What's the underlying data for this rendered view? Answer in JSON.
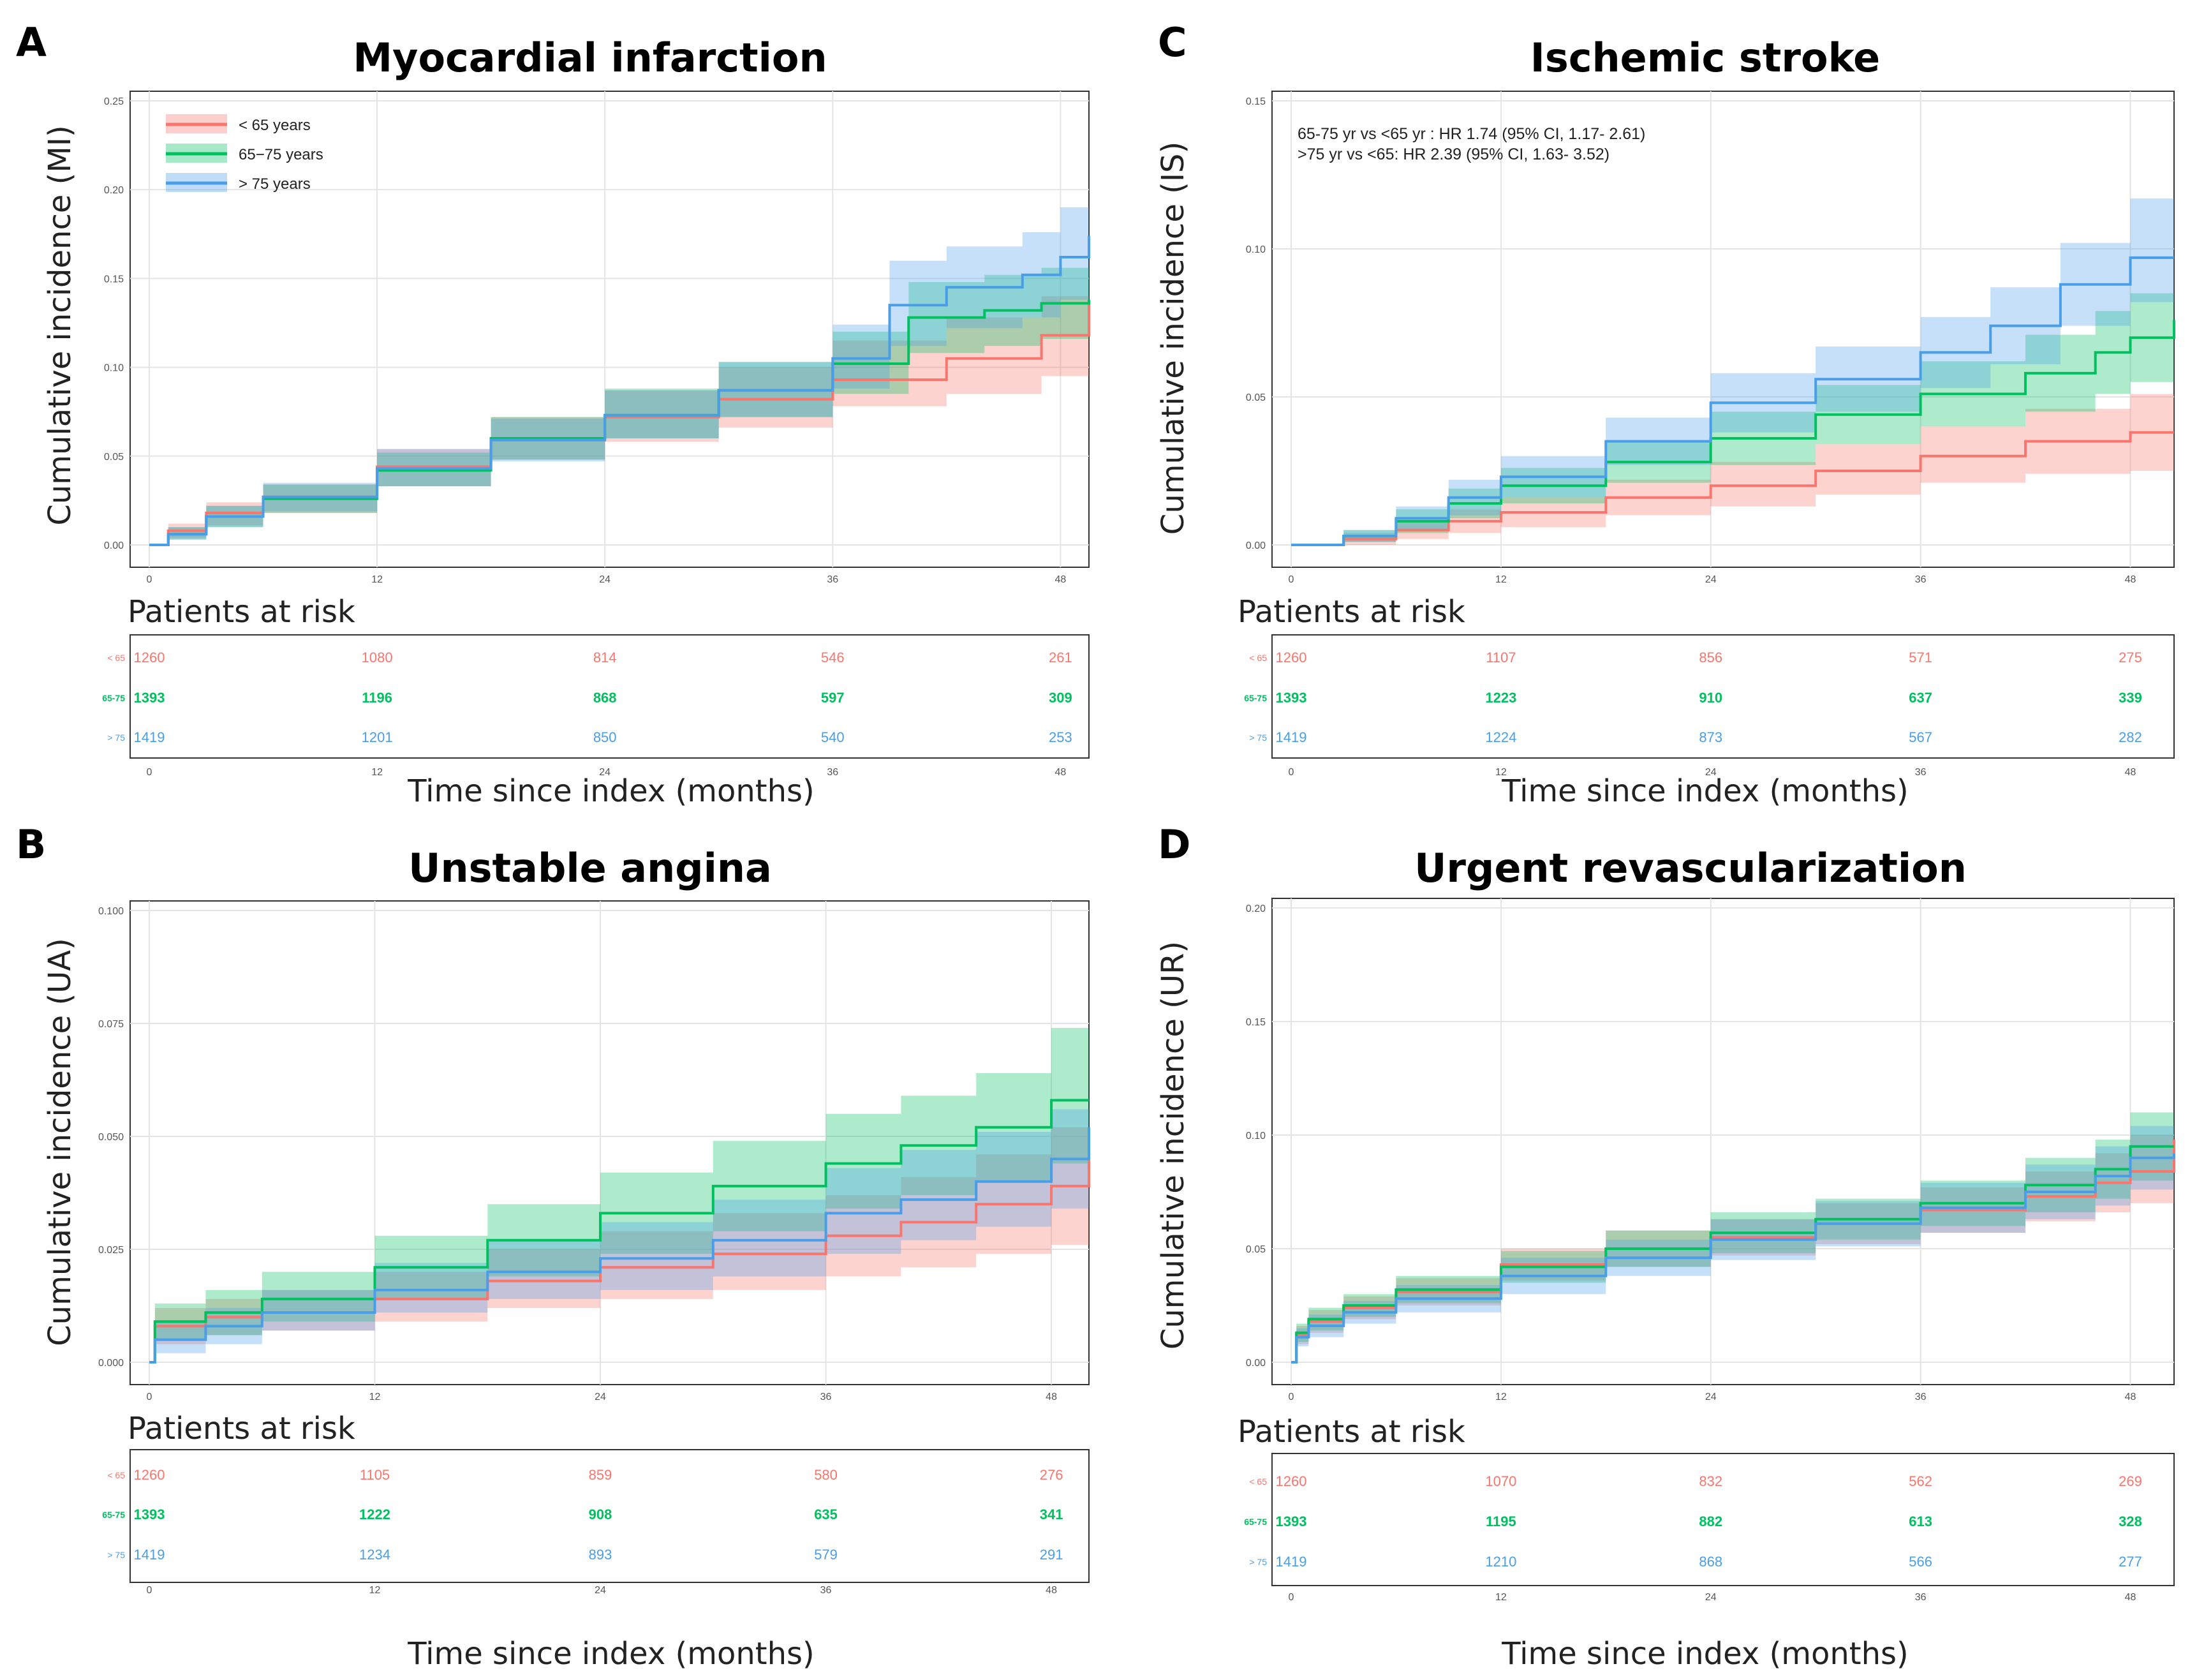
{
  "colors": {
    "lt65": "#f8766d",
    "mid": "#00c060",
    "gt75": "#4a9ee8"
  },
  "x_axis_label": "Time since index (months)",
  "risk_table_heading": "Patients at risk",
  "group_labels": [
    "< 65",
    "65-75",
    "> 75"
  ],
  "x_ticks": [
    "0",
    "12",
    "24",
    "36",
    "48"
  ],
  "legend": {
    "items": [
      "< 65 years",
      "65−75 years",
      "> 75 years"
    ]
  },
  "chart_data": [
    {
      "panel": "A",
      "type": "line",
      "title": "Myocardial infarction",
      "ylabel": "Cumulative incidence (MI)",
      "xlabel": "Time since index (months)",
      "xlim": [
        0,
        49.5
      ],
      "ylim": [
        0,
        0.25
      ],
      "y_ticks": [
        "0.00",
        "0.05",
        "0.10",
        "0.15",
        "0.20",
        "0.25"
      ],
      "grid": true,
      "legend_position": "top-left",
      "annotations": [],
      "series": [
        {
          "name": "< 65 years",
          "x": [
            0,
            1,
            3,
            6,
            12,
            18,
            24,
            30,
            36,
            42,
            47,
            49.5
          ],
          "values": [
            0,
            0.008,
            0.018,
            0.027,
            0.044,
            0.06,
            0.072,
            0.082,
            0.093,
            0.105,
            0.118,
            0.138
          ],
          "ci_low": [
            0,
            0.004,
            0.011,
            0.018,
            0.033,
            0.048,
            0.058,
            0.066,
            0.078,
            0.085,
            0.095,
            0.11
          ],
          "ci_high": [
            0,
            0.012,
            0.024,
            0.034,
            0.054,
            0.072,
            0.087,
            0.1,
            0.115,
            0.128,
            0.14,
            0.16
          ]
        },
        {
          "name": "65−75 years",
          "x": [
            0,
            1,
            3,
            6,
            12,
            18,
            24,
            30,
            36,
            40,
            44,
            47,
            49.5
          ],
          "values": [
            0,
            0.006,
            0.016,
            0.026,
            0.042,
            0.06,
            0.073,
            0.087,
            0.102,
            0.128,
            0.132,
            0.136,
            0.138
          ],
          "ci_low": [
            0,
            0.003,
            0.01,
            0.018,
            0.033,
            0.048,
            0.06,
            0.072,
            0.085,
            0.108,
            0.112,
            0.116,
            0.118
          ],
          "ci_high": [
            0,
            0.01,
            0.022,
            0.034,
            0.052,
            0.072,
            0.088,
            0.103,
            0.12,
            0.148,
            0.152,
            0.156,
            0.158
          ]
        },
        {
          "name": "> 75 years",
          "x": [
            0,
            1,
            3,
            6,
            12,
            18,
            24,
            30,
            36,
            39,
            42,
            46,
            48,
            49.5
          ],
          "values": [
            0,
            0.006,
            0.016,
            0.027,
            0.043,
            0.059,
            0.073,
            0.087,
            0.105,
            0.135,
            0.145,
            0.152,
            0.162,
            0.174
          ],
          "ci_low": [
            0,
            0.003,
            0.01,
            0.019,
            0.033,
            0.047,
            0.06,
            0.072,
            0.088,
            0.112,
            0.122,
            0.128,
            0.138,
            0.148
          ],
          "ci_high": [
            0,
            0.01,
            0.022,
            0.035,
            0.054,
            0.071,
            0.087,
            0.103,
            0.124,
            0.16,
            0.168,
            0.176,
            0.19,
            0.2
          ]
        }
      ],
      "risk_table": {
        "< 65": [
          "1260",
          "1080",
          "814",
          "546",
          "261"
        ],
        "65-75": [
          "1393",
          "1196",
          "868",
          "597",
          "309"
        ],
        "> 75": [
          "1419",
          "1201",
          "850",
          "540",
          "253"
        ]
      }
    },
    {
      "panel": "C",
      "type": "line",
      "title": "Ischemic stroke",
      "ylabel": "Cumulative incidence (IS)",
      "xlabel": "Time since index (months)",
      "xlim": [
        0,
        50.5
      ],
      "ylim": [
        0,
        0.15
      ],
      "y_ticks": [
        "0.00",
        "0.05",
        "0.10",
        "0.15"
      ],
      "grid": true,
      "legend_position": "",
      "annotations": [
        "65-75 yr vs <65 yr : HR 1.74 (95% CI, 1.17- 2.61)",
        ">75 yr vs <65: HR 2.39 (95% CI, 1.63- 3.52)"
      ],
      "series": [
        {
          "name": "< 65 years",
          "x": [
            0,
            3,
            6,
            9,
            12,
            18,
            24,
            30,
            36,
            42,
            48,
            50.5
          ],
          "values": [
            0,
            0.002,
            0.005,
            0.008,
            0.011,
            0.016,
            0.02,
            0.025,
            0.03,
            0.035,
            0.038,
            0.038
          ],
          "ci_low": [
            0,
            0,
            0.002,
            0.004,
            0.006,
            0.01,
            0.013,
            0.017,
            0.021,
            0.024,
            0.025,
            0.025
          ],
          "ci_high": [
            0,
            0.004,
            0.008,
            0.012,
            0.016,
            0.022,
            0.028,
            0.034,
            0.04,
            0.046,
            0.051,
            0.051
          ]
        },
        {
          "name": "65−75 years",
          "x": [
            0,
            3,
            6,
            9,
            12,
            18,
            24,
            30,
            36,
            42,
            46,
            48,
            50.5
          ],
          "values": [
            0,
            0.003,
            0.008,
            0.014,
            0.02,
            0.028,
            0.036,
            0.044,
            0.051,
            0.058,
            0.065,
            0.07,
            0.076
          ],
          "ci_low": [
            0,
            0.001,
            0.004,
            0.009,
            0.014,
            0.021,
            0.027,
            0.034,
            0.04,
            0.045,
            0.051,
            0.055,
            0.06
          ],
          "ci_high": [
            0,
            0.005,
            0.012,
            0.019,
            0.026,
            0.035,
            0.045,
            0.054,
            0.062,
            0.071,
            0.079,
            0.085,
            0.092
          ]
        },
        {
          "name": "> 75 years",
          "x": [
            0,
            3,
            6,
            9,
            12,
            18,
            24,
            30,
            36,
            40,
            44,
            48,
            50.5
          ],
          "values": [
            0,
            0.003,
            0.009,
            0.016,
            0.023,
            0.035,
            0.048,
            0.056,
            0.065,
            0.074,
            0.088,
            0.097,
            0.097
          ],
          "ci_low": [
            0,
            0.001,
            0.005,
            0.01,
            0.016,
            0.027,
            0.038,
            0.045,
            0.053,
            0.061,
            0.074,
            0.082,
            0.082
          ],
          "ci_high": [
            0,
            0.005,
            0.013,
            0.022,
            0.03,
            0.043,
            0.058,
            0.067,
            0.077,
            0.087,
            0.102,
            0.117,
            0.117
          ]
        }
      ],
      "risk_table": {
        "< 65": [
          "1260",
          "1107",
          "856",
          "571",
          "275"
        ],
        "65-75": [
          "1393",
          "1223",
          "910",
          "637",
          "339"
        ],
        "> 75": [
          "1419",
          "1224",
          "873",
          "567",
          "282"
        ]
      }
    },
    {
      "panel": "B",
      "type": "line",
      "title": "Unstable angina",
      "ylabel": "Cumulative incidence (UA)",
      "xlabel": "Time since index (months)",
      "xlim": [
        0,
        50
      ],
      "ylim": [
        0,
        0.1
      ],
      "y_ticks": [
        "0.000",
        "0.025",
        "0.050",
        "0.075",
        "0.100"
      ],
      "grid": true,
      "legend_position": "",
      "annotations": [],
      "series": [
        {
          "name": "< 65 years",
          "x": [
            0,
            0.3,
            3,
            6,
            12,
            18,
            24,
            30,
            36,
            40,
            44,
            48,
            50
          ],
          "values": [
            0,
            0.008,
            0.01,
            0.011,
            0.014,
            0.018,
            0.021,
            0.024,
            0.028,
            0.031,
            0.035,
            0.039,
            0.045
          ],
          "ci_low": [
            0,
            0.004,
            0.006,
            0.007,
            0.009,
            0.012,
            0.014,
            0.016,
            0.019,
            0.021,
            0.024,
            0.026,
            0.03
          ],
          "ci_high": [
            0,
            0.012,
            0.014,
            0.016,
            0.02,
            0.025,
            0.029,
            0.033,
            0.037,
            0.041,
            0.046,
            0.052,
            0.06
          ]
        },
        {
          "name": "65−75 years",
          "x": [
            0,
            0.3,
            3,
            6,
            12,
            18,
            24,
            30,
            36,
            40,
            44,
            48,
            50
          ],
          "values": [
            0,
            0.009,
            0.011,
            0.014,
            0.021,
            0.027,
            0.033,
            0.039,
            0.044,
            0.048,
            0.052,
            0.058,
            0.058
          ],
          "ci_low": [
            0,
            0.005,
            0.006,
            0.009,
            0.014,
            0.019,
            0.024,
            0.029,
            0.034,
            0.037,
            0.04,
            0.044,
            0.044
          ],
          "ci_high": [
            0,
            0.013,
            0.016,
            0.02,
            0.028,
            0.035,
            0.042,
            0.049,
            0.055,
            0.059,
            0.064,
            0.074,
            0.074
          ]
        },
        {
          "name": "> 75 years",
          "x": [
            0,
            0.3,
            3,
            6,
            12,
            18,
            24,
            30,
            36,
            40,
            44,
            48,
            50
          ],
          "values": [
            0,
            0.005,
            0.008,
            0.011,
            0.016,
            0.02,
            0.023,
            0.027,
            0.033,
            0.036,
            0.04,
            0.045,
            0.052
          ],
          "ci_low": [
            0,
            0.002,
            0.004,
            0.007,
            0.011,
            0.014,
            0.016,
            0.019,
            0.024,
            0.027,
            0.03,
            0.034,
            0.04
          ],
          "ci_high": [
            0,
            0.009,
            0.012,
            0.016,
            0.022,
            0.027,
            0.031,
            0.036,
            0.043,
            0.047,
            0.051,
            0.056,
            0.064
          ]
        }
      ],
      "risk_table": {
        "< 65": [
          "1260",
          "1105",
          "859",
          "580",
          "276"
        ],
        "65-75": [
          "1393",
          "1222",
          "908",
          "635",
          "341"
        ],
        "> 75": [
          "1419",
          "1234",
          "893",
          "579",
          "291"
        ]
      }
    },
    {
      "panel": "D",
      "type": "line",
      "title": "Urgent revascularization",
      "ylabel": "Cumulative incidence (UR)",
      "xlabel": "Time since index (months)",
      "xlim": [
        0,
        50.5
      ],
      "ylim": [
        0,
        0.2
      ],
      "y_ticks": [
        "0.00",
        "0.05",
        "0.10",
        "0.15",
        "0.20"
      ],
      "grid": true,
      "legend_position": "",
      "annotations": [],
      "series": [
        {
          "name": "< 65 years",
          "x": [
            0,
            0.3,
            1,
            3,
            6,
            12,
            18,
            24,
            30,
            36,
            42,
            46,
            48,
            50.5
          ],
          "values": [
            0,
            0.012,
            0.018,
            0.024,
            0.031,
            0.043,
            0.05,
            0.055,
            0.061,
            0.067,
            0.073,
            0.079,
            0.084,
            0.098
          ],
          "ci_low": [
            0,
            0.008,
            0.013,
            0.019,
            0.025,
            0.036,
            0.042,
            0.047,
            0.052,
            0.057,
            0.062,
            0.066,
            0.07,
            0.07
          ],
          "ci_high": [
            0,
            0.016,
            0.023,
            0.029,
            0.037,
            0.05,
            0.058,
            0.063,
            0.07,
            0.077,
            0.084,
            0.092,
            0.1,
            0.118
          ]
        },
        {
          "name": "65−75 years",
          "x": [
            0,
            0.3,
            1,
            3,
            6,
            12,
            18,
            24,
            30,
            36,
            42,
            46,
            48,
            50.5
          ],
          "values": [
            0,
            0.013,
            0.019,
            0.025,
            0.032,
            0.042,
            0.05,
            0.057,
            0.063,
            0.07,
            0.078,
            0.085,
            0.095,
            0.095
          ],
          "ci_low": [
            0,
            0.009,
            0.014,
            0.02,
            0.026,
            0.035,
            0.042,
            0.048,
            0.054,
            0.06,
            0.066,
            0.072,
            0.08,
            0.08
          ],
          "ci_high": [
            0,
            0.017,
            0.024,
            0.03,
            0.038,
            0.049,
            0.058,
            0.066,
            0.072,
            0.08,
            0.09,
            0.098,
            0.11,
            0.11
          ]
        },
        {
          "name": "> 75 years",
          "x": [
            0,
            0.3,
            1,
            3,
            6,
            12,
            18,
            24,
            30,
            36,
            42,
            46,
            48,
            50.5
          ],
          "values": [
            0,
            0.011,
            0.016,
            0.022,
            0.028,
            0.038,
            0.046,
            0.054,
            0.061,
            0.068,
            0.075,
            0.082,
            0.09,
            0.092
          ],
          "ci_low": [
            0,
            0.007,
            0.011,
            0.017,
            0.022,
            0.03,
            0.038,
            0.045,
            0.051,
            0.057,
            0.063,
            0.069,
            0.076,
            0.078
          ],
          "ci_high": [
            0,
            0.015,
            0.021,
            0.027,
            0.034,
            0.046,
            0.054,
            0.063,
            0.071,
            0.079,
            0.087,
            0.095,
            0.104,
            0.106
          ]
        }
      ],
      "risk_table": {
        "< 65": [
          "1260",
          "1070",
          "832",
          "562",
          "269"
        ],
        "65-75": [
          "1393",
          "1195",
          "882",
          "613",
          "328"
        ],
        "> 75": [
          "1419",
          "1210",
          "868",
          "566",
          "277"
        ]
      }
    }
  ]
}
